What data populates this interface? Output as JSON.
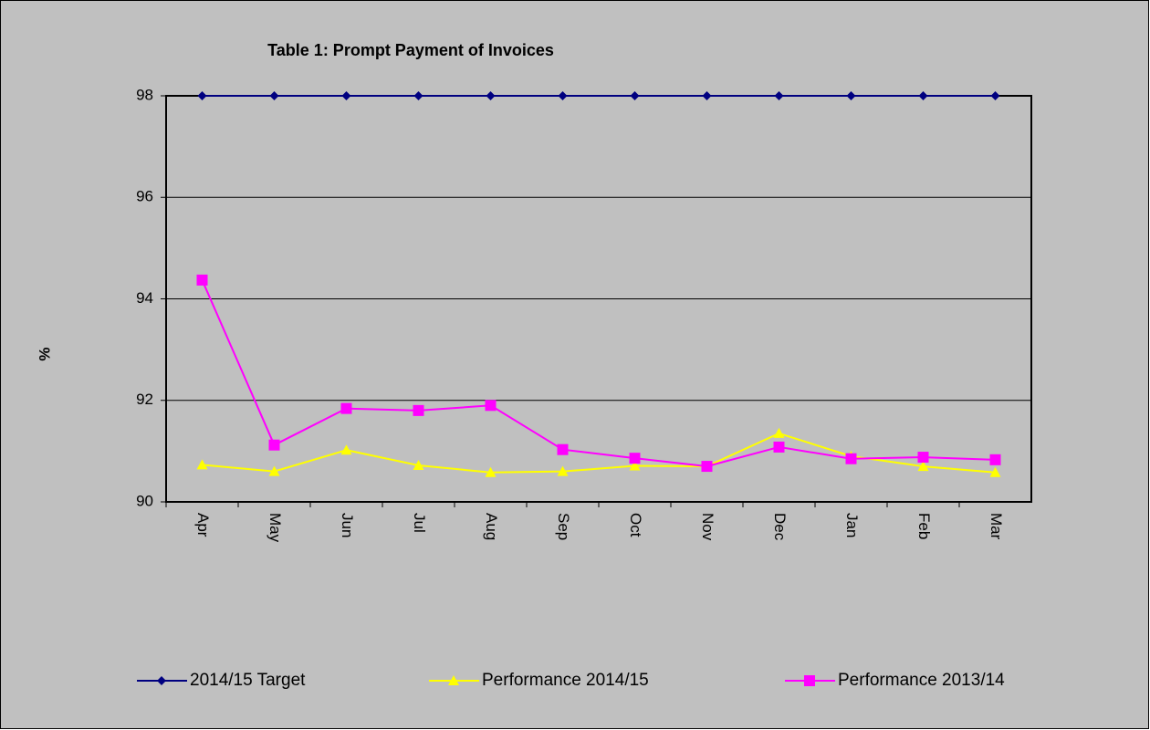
{
  "chart_data": {
    "type": "line",
    "title": "Table 1: Prompt Payment of Invoices",
    "y_label": "%",
    "categories": [
      "Apr",
      "May",
      "Jun",
      "Jul",
      "Aug",
      "Sep",
      "Oct",
      "Nov",
      "Dec",
      "Jan",
      "Feb",
      "Mar"
    ],
    "series": [
      {
        "name": "2014/15 Target",
        "color": "#000080",
        "marker": "diamond",
        "values": [
          98,
          98,
          98,
          98,
          98,
          98,
          98,
          98,
          98,
          98,
          98,
          98
        ]
      },
      {
        "name": "Performance 2014/15",
        "color": "#ffff00",
        "marker": "triangle",
        "values": [
          90.73,
          90.6,
          91.02,
          90.72,
          90.58,
          90.6,
          90.71,
          90.7,
          91.35,
          90.9,
          90.7,
          90.58
        ]
      },
      {
        "name": "Performance 2013/14",
        "color": "#ff00ff",
        "marker": "square",
        "values": [
          94.37,
          91.12,
          91.84,
          91.8,
          91.9,
          91.03,
          90.86,
          90.7,
          91.08,
          90.85,
          90.88,
          90.83
        ]
      }
    ],
    "ylim": [
      90,
      98
    ],
    "yticks": [
      90,
      92,
      94,
      96,
      98
    ],
    "grid": true,
    "legend": "bottom"
  }
}
